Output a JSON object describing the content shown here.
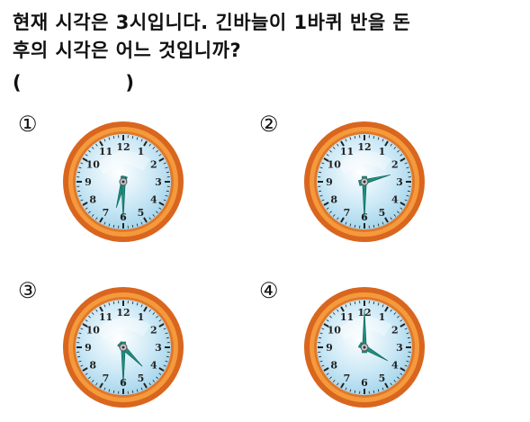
{
  "question": {
    "line1": "현재 시각은 3시입니다. 긴바늘이 1바퀴 반을 돈",
    "line2": "후의 시각은 어느 것입니까?",
    "paren_open": "(",
    "paren_close": ")"
  },
  "options": [
    {
      "number": "①",
      "hour": 6,
      "minute": 30
    },
    {
      "number": "②",
      "hour": 2,
      "minute": 30
    },
    {
      "number": "③",
      "hour": 4,
      "minute": 30
    },
    {
      "number": "④",
      "hour": 4,
      "minute": 0
    }
  ],
  "clock_numerals": [
    "12",
    "1",
    "2",
    "3",
    "4",
    "5",
    "6",
    "7",
    "8",
    "9",
    "10",
    "11"
  ],
  "colors": {
    "rim_outer": "#d9661f",
    "rim_inner": "#f59a3c",
    "face": "#cde9f6",
    "hand": "#1d8f7f",
    "text": "#111111"
  }
}
